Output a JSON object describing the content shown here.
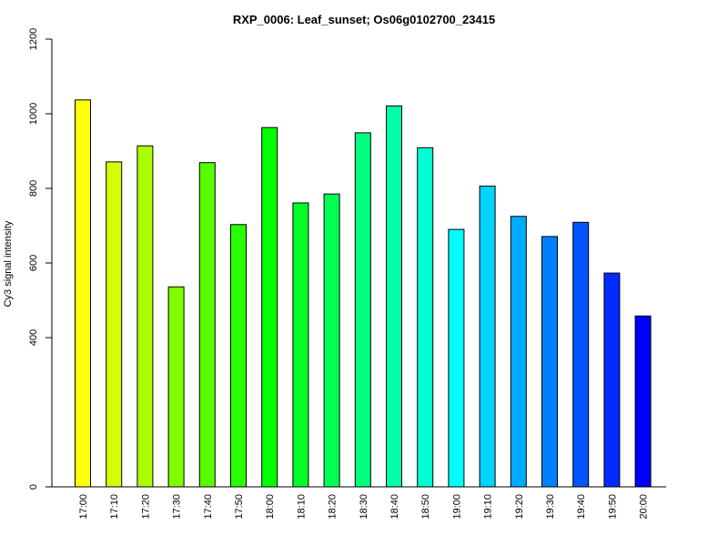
{
  "chart_data": {
    "type": "bar",
    "title": "RXP_0006: Leaf_sunset; Os06g0102700_23415",
    "xlabel": "",
    "ylabel": "Cy3 signal intensity",
    "ylim": [
      0,
      1200
    ],
    "yticks": [
      "0",
      "400",
      "600",
      "800",
      "1000",
      "1200"
    ],
    "grid": false,
    "categories": [
      "17:00",
      "17:10",
      "17:20",
      "17:30",
      "17:40",
      "17:50",
      "18:00",
      "18:10",
      "18:20",
      "18:30",
      "18:40",
      "18:50",
      "19:00",
      "19:10",
      "19:20",
      "19:30",
      "19:40",
      "19:50",
      "20:00"
    ],
    "values": [
      1037,
      871,
      914,
      536,
      869,
      703,
      963,
      761,
      785,
      949,
      1021,
      909,
      690,
      806,
      725,
      671,
      709,
      573,
      458
    ],
    "colors": [
      "#FFFF00",
      "#D4FF00",
      "#AAFF00",
      "#7FFF00",
      "#55FF00",
      "#2AFF00",
      "#00FF00",
      "#00FF2A",
      "#00FF55",
      "#00FF7F",
      "#00FFAA",
      "#00FFD4",
      "#00FFFF",
      "#00D4FF",
      "#00AAFF",
      "#007FFF",
      "#0055FF",
      "#002AFF",
      "#0000FF"
    ]
  }
}
